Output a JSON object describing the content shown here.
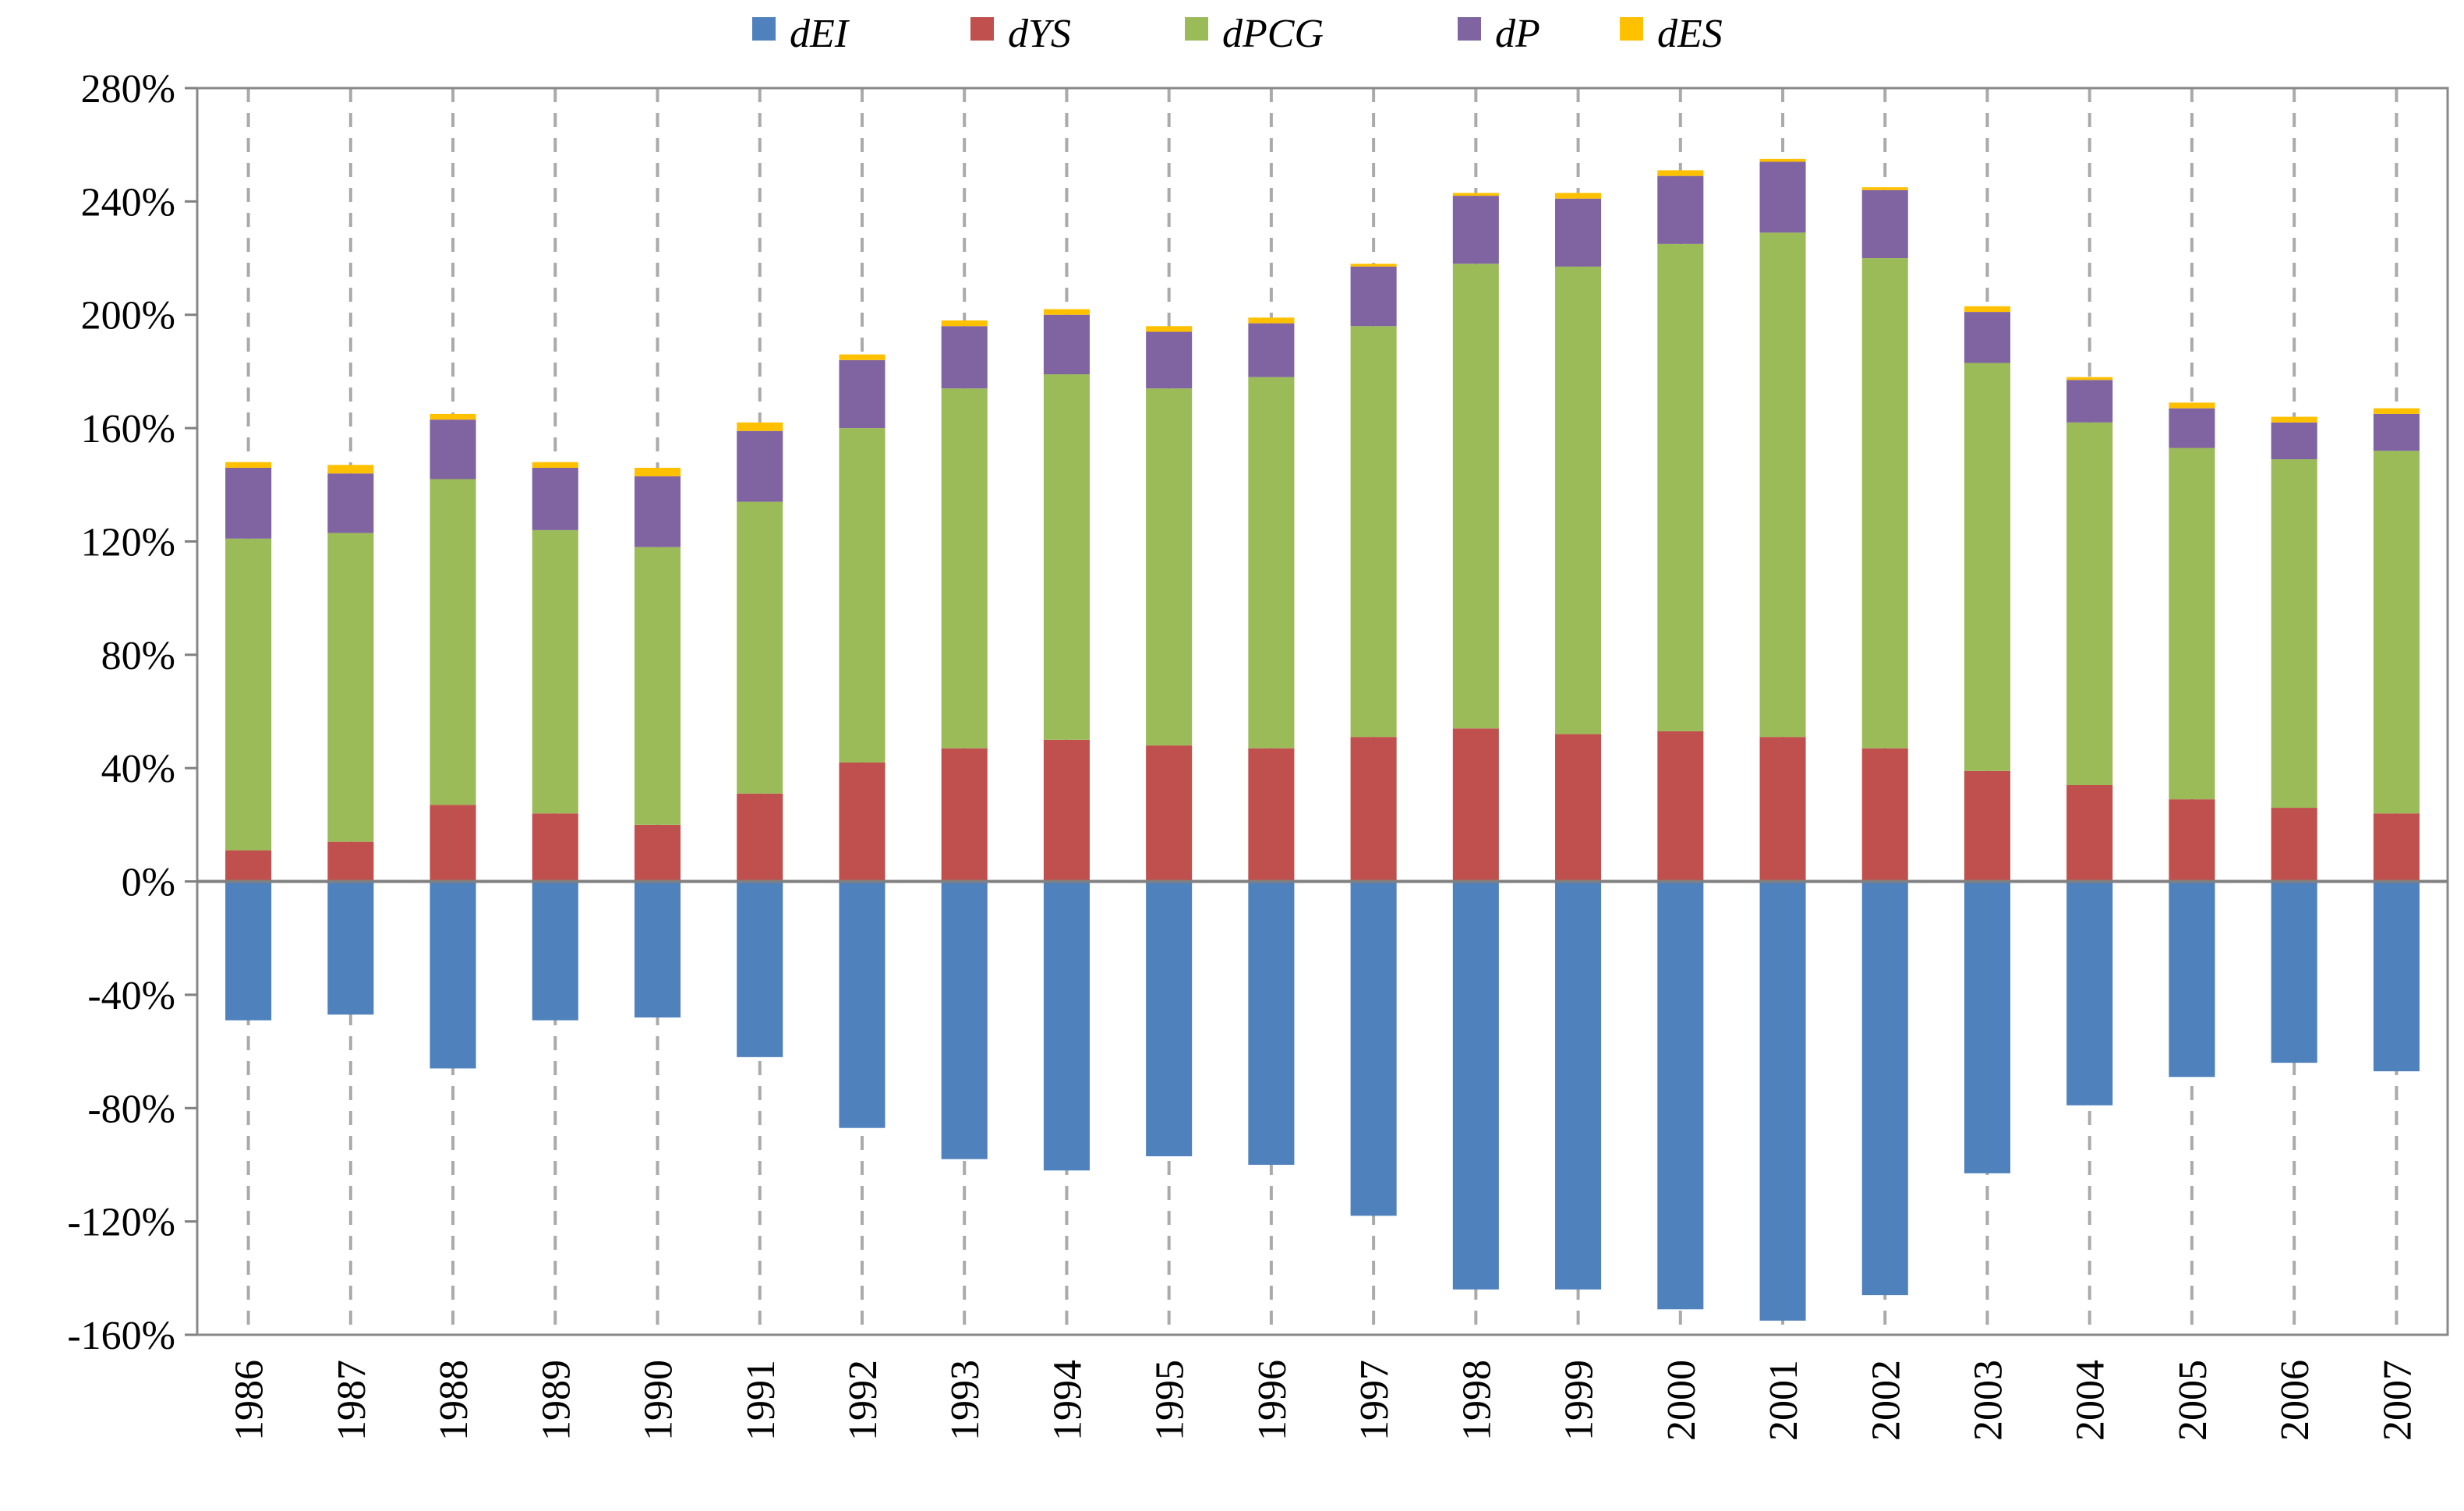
{
  "chart_data": {
    "type": "bar",
    "stacked": true,
    "title": "",
    "xlabel": "",
    "ylabel": "",
    "ylim": [
      -160,
      280
    ],
    "yticks": [
      -160,
      -120,
      -80,
      -40,
      0,
      40,
      80,
      120,
      160,
      200,
      240,
      280
    ],
    "ytick_labels": [
      "-160%",
      "-120%",
      "-80%",
      "-40%",
      "0%",
      "40%",
      "80%",
      "120%",
      "160%",
      "200%",
      "240%",
      "280%"
    ],
    "y_unit": "%",
    "grid": "vertical dashed",
    "legend_position": "top",
    "categories": [
      "1986",
      "1987",
      "1988",
      "1989",
      "1990",
      "1991",
      "1992",
      "1993",
      "1994",
      "1995",
      "1996",
      "1997",
      "1998",
      "1999",
      "2000",
      "2001",
      "2002",
      "2003",
      "2004",
      "2005",
      "2006",
      "2007"
    ],
    "series": [
      {
        "name": "dEI",
        "color": "#4F81BD",
        "values": [
          -49,
          -47,
          -66,
          -49,
          -48,
          -62,
          -87,
          -98,
          -102,
          -97,
          -100,
          -118,
          -144,
          -144,
          -151,
          -155,
          -146,
          -103,
          -79,
          -69,
          -64,
          -67
        ]
      },
      {
        "name": "dYS",
        "color": "#C0504D",
        "values": [
          11,
          14,
          27,
          24,
          20,
          31,
          42,
          47,
          50,
          48,
          47,
          51,
          54,
          52,
          53,
          51,
          47,
          39,
          34,
          29,
          26,
          24
        ]
      },
      {
        "name": "dPCG",
        "color": "#9BBB59",
        "values": [
          110,
          109,
          115,
          100,
          98,
          103,
          118,
          127,
          129,
          126,
          131,
          145,
          164,
          165,
          172,
          178,
          173,
          144,
          128,
          124,
          123,
          128
        ]
      },
      {
        "name": "dP",
        "color": "#8064A2",
        "values": [
          25,
          21,
          21,
          22,
          25,
          25,
          24,
          22,
          21,
          20,
          19,
          21,
          24,
          24,
          24,
          25,
          24,
          18,
          15,
          14,
          13,
          13
        ]
      },
      {
        "name": "dES",
        "color": "#FFC000",
        "values": [
          2,
          3,
          2,
          2,
          3,
          3,
          2,
          2,
          2,
          2,
          2,
          1,
          1,
          2,
          2,
          1,
          1,
          2,
          1,
          2,
          2,
          2
        ]
      }
    ]
  }
}
